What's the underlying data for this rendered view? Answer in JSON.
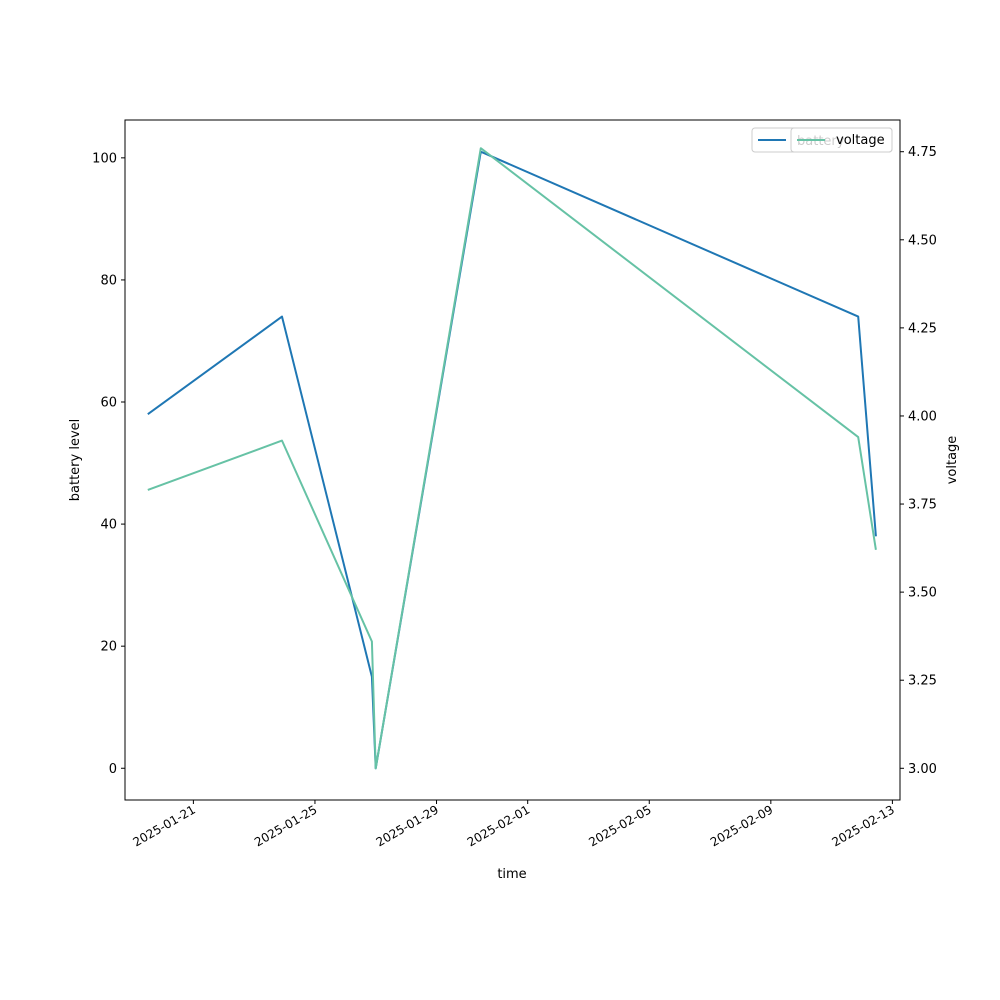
{
  "chart_data": {
    "type": "line",
    "xlabel": "time",
    "ylabel": "battery level",
    "y2label": "voltage",
    "x_ticks": [
      "2025-01-21",
      "2025-01-25",
      "2025-01-29",
      "2025-02-01",
      "2025-02-05",
      "2025-02-09",
      "2025-02-13"
    ],
    "y_ticks": [
      0,
      20,
      40,
      60,
      80,
      100
    ],
    "y2_ticks": [
      "3.00",
      "3.25",
      "3.50",
      "3.75",
      "4.00",
      "4.25",
      "4.50",
      "4.75"
    ],
    "xlim": [
      "2025-01-18T18:00",
      "2025-02-13T06:00"
    ],
    "ylim": [
      -5.2,
      106.2
    ],
    "y2lim": [
      2.91,
      4.84
    ],
    "grid": false,
    "series": [
      {
        "name": "battery",
        "axis": "left",
        "color": "#1f77b4",
        "x": [
          "2025-01-19T12:00",
          "2025-01-23T22:00",
          "2025-01-26T21:00",
          "2025-01-27T00:00",
          "2025-01-30T11:00",
          "2025-02-11T21:00",
          "2025-02-12T11:00"
        ],
        "values": [
          58,
          74,
          15,
          0,
          101,
          74,
          38
        ]
      },
      {
        "name": "voltage",
        "axis": "right",
        "color": "#66c2a5",
        "x": [
          "2025-01-19T12:00",
          "2025-01-23T22:00",
          "2025-01-26T21:00",
          "2025-01-27T00:00",
          "2025-01-30T11:00",
          "2025-02-11T21:00",
          "2025-02-12T11:00"
        ],
        "values": [
          3.79,
          3.93,
          3.36,
          3.0,
          4.76,
          3.94,
          3.62
        ]
      }
    ],
    "legends": [
      {
        "entries": [
          "battery"
        ],
        "placement": "upper right"
      },
      {
        "entries": [
          "voltage"
        ],
        "placement": "upper right"
      }
    ]
  }
}
